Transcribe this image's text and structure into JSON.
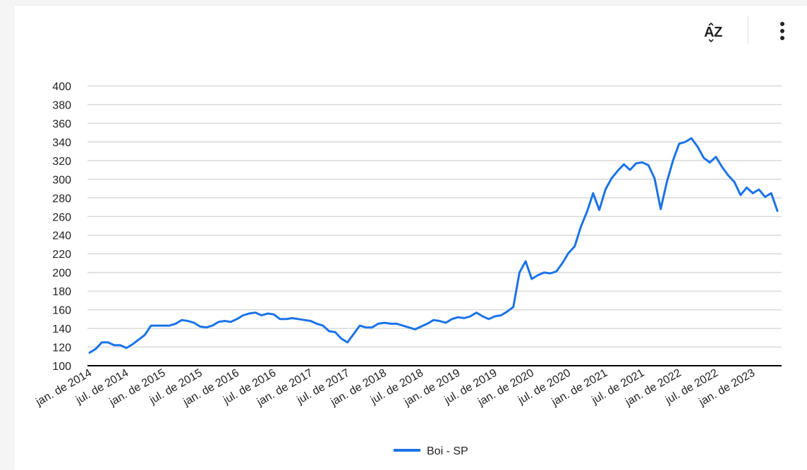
{
  "toolbar": {
    "sort_icon": "sort-az-icon",
    "more_icon": "more-vert-icon",
    "sort_text": "AZ"
  },
  "colors": {
    "series": "#1a73e8",
    "grid": "#d9d9d9",
    "axis": "#000000"
  },
  "chart_data": {
    "type": "line",
    "title": "",
    "xlabel": "",
    "ylabel": "",
    "ylim": [
      100,
      400
    ],
    "y_ticks": [
      100,
      120,
      140,
      160,
      180,
      200,
      220,
      240,
      260,
      280,
      300,
      320,
      340,
      360,
      380,
      400
    ],
    "x_tick_labels": [
      "jan. de 2014",
      "jul. de 2014",
      "jan. de 2015",
      "jul. de 2015",
      "jan. de 2016",
      "jul. de 2016",
      "jan. de 2017",
      "jul. de 2017",
      "jan. de 2018",
      "jul. de 2018",
      "jan. de 2019",
      "jul. de 2019",
      "jan. de 2020",
      "jul. de 2020",
      "jan. de 2021",
      "jul. de 2021",
      "jan. de 2022",
      "jul. de 2022",
      "jan. de 2023"
    ],
    "grid": true,
    "legend": "bottom",
    "series": [
      {
        "name": "Boi - SP",
        "x_start": "2014-01",
        "values": [
          114,
          118,
          125,
          125,
          122,
          122,
          119,
          123,
          128,
          133,
          143,
          143,
          143,
          143,
          145,
          149,
          148,
          146,
          142,
          141,
          143,
          147,
          148,
          147,
          150,
          154,
          156,
          157,
          154,
          156,
          155,
          150,
          150,
          151,
          150,
          149,
          148,
          145,
          143,
          137,
          136,
          129,
          125,
          134,
          143,
          141,
          141,
          145,
          146,
          145,
          145,
          143,
          141,
          139,
          142,
          145,
          149,
          148,
          146,
          150,
          152,
          151,
          153,
          157,
          153,
          150,
          153,
          154,
          158,
          163,
          200,
          212,
          193,
          197,
          200,
          199,
          201,
          210,
          221,
          228,
          249,
          265,
          285,
          267,
          289,
          301,
          309,
          316,
          310,
          317,
          318,
          315,
          301,
          268,
          297,
          320,
          338,
          340,
          344,
          335,
          323,
          318,
          324,
          313,
          304,
          297,
          283,
          291,
          285,
          289,
          281,
          285,
          266
        ]
      }
    ]
  }
}
